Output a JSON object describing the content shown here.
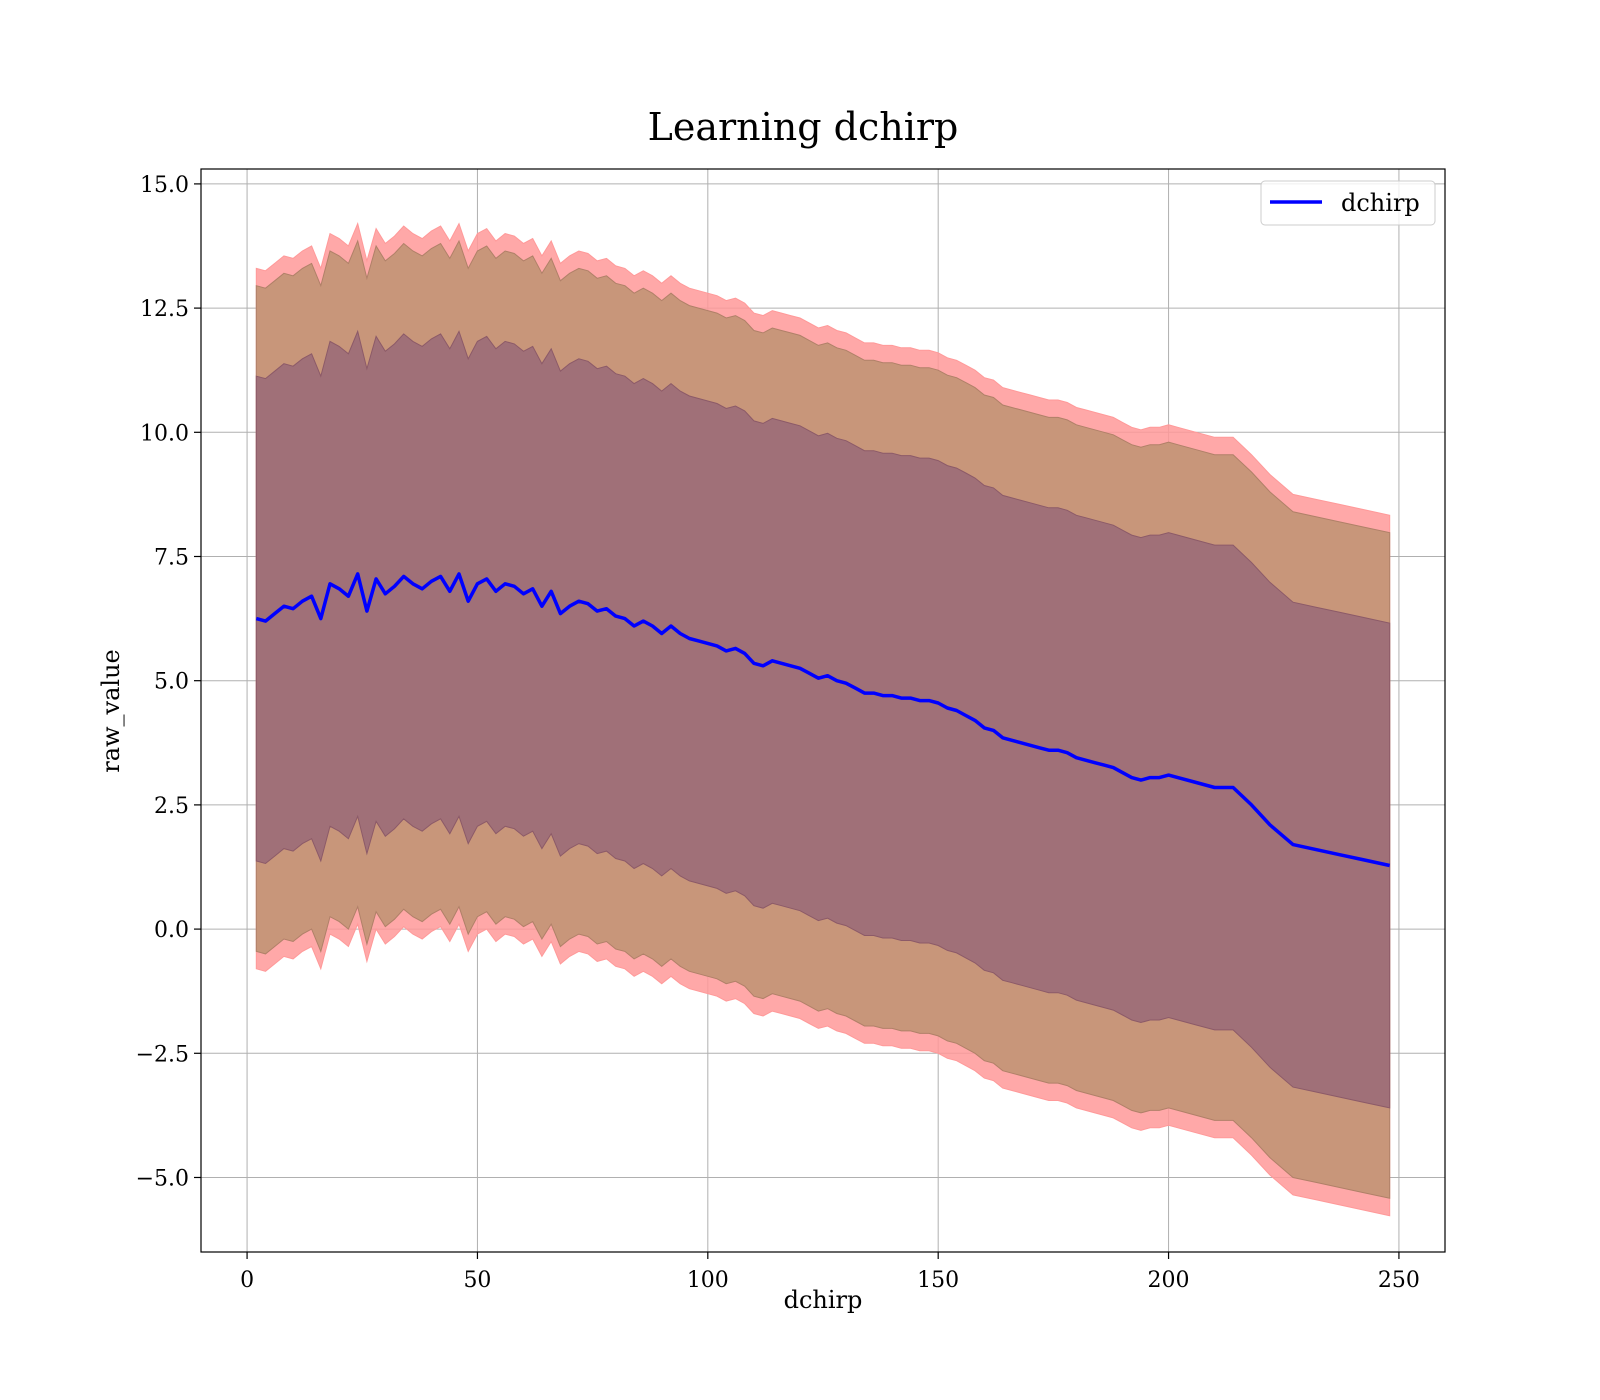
{
  "chart_data": {
    "type": "line",
    "title": "Learning dchirp",
    "xlabel": "dchirp",
    "ylabel": "raw_value",
    "xlim": [
      -10,
      260
    ],
    "ylim": [
      -6.5,
      15.3
    ],
    "xticks": [
      0,
      50,
      100,
      150,
      200,
      250
    ],
    "yticks": [
      -5.0,
      -2.5,
      0.0,
      2.5,
      5.0,
      7.5,
      10.0,
      12.5,
      15.0
    ],
    "xtick_labels": [
      "0",
      "50",
      "100",
      "150",
      "200",
      "250"
    ],
    "ytick_labels": [
      "−5.0",
      "−2.5",
      "0.0",
      "2.5",
      "5.0",
      "7.5",
      "10.0",
      "12.5",
      "15.0"
    ],
    "grid": true,
    "legend_position": "top-right",
    "colors": {
      "line": "#0000ff",
      "outer_band": "#ff9999",
      "middle_band": "#c8967a",
      "inner_band": "#a07078"
    },
    "series": [
      {
        "name": "dchirp",
        "x": [
          2,
          4,
          6,
          8,
          10,
          12,
          14,
          16,
          18,
          20,
          22,
          24,
          26,
          28,
          30,
          32,
          34,
          36,
          38,
          40,
          42,
          44,
          46,
          48,
          50,
          52,
          54,
          56,
          58,
          60,
          62,
          64,
          66,
          68,
          70,
          72,
          74,
          76,
          78,
          80,
          82,
          84,
          86,
          88,
          90,
          92,
          94,
          96,
          98,
          100,
          102,
          104,
          106,
          108,
          110,
          112,
          114,
          116,
          118,
          120,
          122,
          124,
          126,
          128,
          130,
          132,
          134,
          136,
          138,
          140,
          142,
          144,
          146,
          148,
          150,
          152,
          154,
          156,
          158,
          160,
          162,
          164,
          166,
          168,
          170,
          172,
          174,
          176,
          178,
          180,
          182,
          184,
          186,
          188,
          190,
          192,
          194,
          196,
          198,
          200,
          202,
          206,
          210,
          214,
          218,
          222,
          227,
          232,
          237,
          242,
          248
        ],
        "y": [
          6.25,
          6.2,
          6.35,
          6.5,
          6.45,
          6.6,
          6.7,
          6.25,
          6.95,
          6.85,
          6.7,
          7.15,
          6.4,
          7.05,
          6.75,
          6.9,
          7.1,
          6.95,
          6.85,
          7.0,
          7.1,
          6.8,
          7.15,
          6.6,
          6.95,
          7.05,
          6.8,
          6.95,
          6.9,
          6.75,
          6.85,
          6.5,
          6.8,
          6.35,
          6.5,
          6.6,
          6.55,
          6.4,
          6.45,
          6.3,
          6.25,
          6.1,
          6.2,
          6.1,
          5.95,
          6.1,
          5.95,
          5.85,
          5.8,
          5.75,
          5.7,
          5.6,
          5.65,
          5.55,
          5.35,
          5.3,
          5.4,
          5.35,
          5.3,
          5.25,
          5.15,
          5.05,
          5.1,
          5.0,
          4.95,
          4.85,
          4.75,
          4.75,
          4.7,
          4.7,
          4.65,
          4.65,
          4.6,
          4.6,
          4.55,
          4.45,
          4.4,
          4.3,
          4.2,
          4.05,
          4.0,
          3.85,
          3.8,
          3.75,
          3.7,
          3.65,
          3.6,
          3.6,
          3.55,
          3.45,
          3.4,
          3.35,
          3.3,
          3.25,
          3.15,
          3.05,
          3.0,
          3.05,
          3.05,
          3.1,
          3.05,
          2.95,
          2.85,
          2.85,
          2.5,
          2.1,
          1.7,
          1.6,
          1.5,
          1.4,
          1.28
        ]
      }
    ],
    "bands": {
      "outer_offset": [
        7.05,
        7.05,
        7.05,
        7.05,
        7.05,
        7.05,
        7.05,
        7.05,
        7.05,
        7.05,
        7.05,
        7.05,
        7.05,
        7.05,
        7.05,
        7.05,
        7.05,
        7.05,
        7.05,
        7.05,
        7.05,
        7.05,
        7.05,
        7.05,
        7.05,
        7.05,
        7.05,
        7.05,
        7.05,
        7.05,
        7.05,
        7.05,
        7.05,
        7.05,
        7.05,
        7.05,
        7.05,
        7.05,
        7.05,
        7.05,
        7.05,
        7.05,
        7.05,
        7.05,
        7.05,
        7.05,
        7.05,
        7.05,
        7.05,
        7.05,
        7.05,
        7.05,
        7.05,
        7.05,
        7.05,
        7.05,
        7.05,
        7.05,
        7.05,
        7.05,
        7.05,
        7.05,
        7.05,
        7.05,
        7.05,
        7.05,
        7.05,
        7.05,
        7.05,
        7.05,
        7.05,
        7.05,
        7.05,
        7.05,
        7.05,
        7.05,
        7.05,
        7.05,
        7.05,
        7.05,
        7.05,
        7.05,
        7.05,
        7.05,
        7.05,
        7.05,
        7.05,
        7.05,
        7.05,
        7.05,
        7.05,
        7.05,
        7.05,
        7.05,
        7.05,
        7.05,
        7.05,
        7.05,
        7.05,
        7.05,
        7.05,
        7.05,
        7.05,
        7.05,
        7.05,
        7.05,
        7.05,
        7.05,
        7.05,
        7.05,
        7.05
      ],
      "middle_offset": [
        6.7,
        6.7,
        6.7,
        6.7,
        6.7,
        6.7,
        6.7,
        6.7,
        6.7,
        6.7,
        6.7,
        6.7,
        6.7,
        6.7,
        6.7,
        6.7,
        6.7,
        6.7,
        6.7,
        6.7,
        6.7,
        6.7,
        6.7,
        6.7,
        6.7,
        6.7,
        6.7,
        6.7,
        6.7,
        6.7,
        6.7,
        6.7,
        6.7,
        6.7,
        6.7,
        6.7,
        6.7,
        6.7,
        6.7,
        6.7,
        6.7,
        6.7,
        6.7,
        6.7,
        6.7,
        6.7,
        6.7,
        6.7,
        6.7,
        6.7,
        6.7,
        6.7,
        6.7,
        6.7,
        6.7,
        6.7,
        6.7,
        6.7,
        6.7,
        6.7,
        6.7,
        6.7,
        6.7,
        6.7,
        6.7,
        6.7,
        6.7,
        6.7,
        6.7,
        6.7,
        6.7,
        6.7,
        6.7,
        6.7,
        6.7,
        6.7,
        6.7,
        6.7,
        6.7,
        6.7,
        6.7,
        6.7,
        6.7,
        6.7,
        6.7,
        6.7,
        6.7,
        6.7,
        6.7,
        6.7,
        6.7,
        6.7,
        6.7,
        6.7,
        6.7,
        6.7,
        6.7,
        6.7,
        6.7,
        6.7,
        6.7,
        6.7,
        6.7,
        6.7,
        6.7,
        6.7,
        6.7,
        6.7,
        6.7,
        6.7,
        6.7
      ],
      "inner_offset": [
        4.88,
        4.88,
        4.88,
        4.88,
        4.88,
        4.88,
        4.88,
        4.88,
        4.88,
        4.88,
        4.88,
        4.88,
        4.88,
        4.88,
        4.88,
        4.88,
        4.88,
        4.88,
        4.88,
        4.88,
        4.88,
        4.88,
        4.88,
        4.88,
        4.88,
        4.88,
        4.88,
        4.88,
        4.88,
        4.88,
        4.88,
        4.88,
        4.88,
        4.88,
        4.88,
        4.88,
        4.88,
        4.88,
        4.88,
        4.88,
        4.88,
        4.88,
        4.88,
        4.88,
        4.88,
        4.88,
        4.88,
        4.88,
        4.88,
        4.88,
        4.88,
        4.88,
        4.88,
        4.88,
        4.88,
        4.88,
        4.88,
        4.88,
        4.88,
        4.88,
        4.88,
        4.88,
        4.88,
        4.88,
        4.88,
        4.88,
        4.88,
        4.88,
        4.88,
        4.88,
        4.88,
        4.88,
        4.88,
        4.88,
        4.88,
        4.88,
        4.88,
        4.88,
        4.88,
        4.88,
        4.88,
        4.88,
        4.88,
        4.88,
        4.88,
        4.88,
        4.88,
        4.88,
        4.88,
        4.88,
        4.88,
        4.88,
        4.88,
        4.88,
        4.88,
        4.88,
        4.88,
        4.88,
        4.88,
        4.88,
        4.88,
        4.88,
        4.88,
        4.88,
        4.88,
        4.88,
        4.88,
        4.88,
        4.88,
        4.88,
        4.88
      ]
    }
  }
}
